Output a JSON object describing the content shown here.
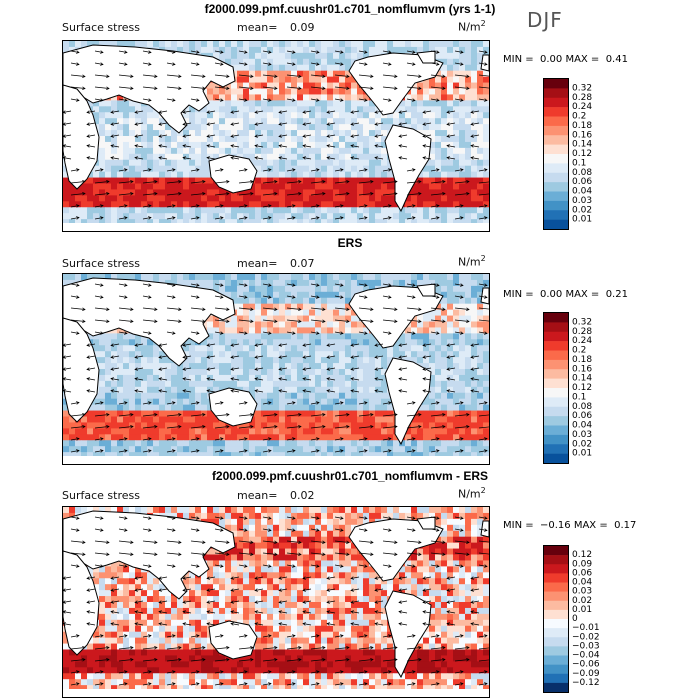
{
  "season": "DJF",
  "panels": [
    {
      "title": "f2000.099.pmf.cuushr01.c701_nomflumvm (yrs 1-1)",
      "variable": "Surface stress",
      "mean_label": "mean=",
      "mean_value": "0.09",
      "unit_base": "N/m",
      "unit_exp": "2",
      "min_label": "MIN =",
      "min_value": "0.00",
      "max_label": "MAX =",
      "max_value": "0.41",
      "colorbar_labels": [
        "0.32",
        "0.28",
        "0.24",
        "0.2",
        "0.18",
        "0.16",
        "0.14",
        "0.12",
        "0.1",
        "0.08",
        "0.06",
        "0.04",
        "0.03",
        "0.02",
        "0.01"
      ]
    },
    {
      "title": "ERS",
      "variable": "Surface stress",
      "mean_label": "mean=",
      "mean_value": "0.07",
      "unit_base": "N/m",
      "unit_exp": "2",
      "min_label": "MIN =",
      "min_value": "0.00",
      "max_label": "MAX =",
      "max_value": "0.21",
      "colorbar_labels": [
        "0.32",
        "0.28",
        "0.24",
        "0.2",
        "0.18",
        "0.16",
        "0.14",
        "0.12",
        "0.1",
        "0.08",
        "0.06",
        "0.04",
        "0.03",
        "0.02",
        "0.01"
      ]
    },
    {
      "title": "f2000.099.pmf.cuushr01.c701_nomflumvm - ERS",
      "variable": "Surface stress",
      "mean_label": "mean=",
      "mean_value": "0.02",
      "unit_base": "N/m",
      "unit_exp": "2",
      "min_label": "MIN =",
      "min_value": "−0.16",
      "max_label": "MAX =",
      "max_value": "0.17",
      "colorbar_labels": [
        "0.12",
        "0.09",
        "0.06",
        "0.04",
        "0.03",
        "0.02",
        "0.01",
        "0",
        "−0.01",
        "−0.02",
        "−0.03",
        "−0.04",
        "−0.06",
        "−0.09",
        "−0.12"
      ]
    }
  ],
  "colors": {
    "seq": [
      "#67000d",
      "#a50f15",
      "#cb181d",
      "#ef3b2c",
      "#fb6a4a",
      "#fc9272",
      "#fcbba1",
      "#fee0d2",
      "#f7f7f7",
      "#deebf7",
      "#c6dbef",
      "#9ecae1",
      "#6baed6",
      "#4292c6",
      "#2171b5",
      "#08519c"
    ],
    "div": [
      "#67000d",
      "#a50f15",
      "#cb181d",
      "#ef3b2c",
      "#fb6a4a",
      "#fc9272",
      "#fcbba1",
      "#fee0d2",
      "#f7fbff",
      "#deebf7",
      "#c6dbef",
      "#9ecae1",
      "#6baed6",
      "#4292c6",
      "#2171b5",
      "#08306b"
    ],
    "land": "#ffffff",
    "coast": "#000000",
    "arrow": "#000000"
  },
  "chart_data": [
    {
      "type": "heatmap",
      "title": "f2000.099.pmf.cuushr01.c701_nomflumvm (yrs 1-1)",
      "field": "Surface stress",
      "units": "N/m2",
      "mean": 0.09,
      "min": 0.0,
      "max": 0.41,
      "levels": [
        0.01,
        0.02,
        0.03,
        0.04,
        0.06,
        0.08,
        0.1,
        0.12,
        0.14,
        0.16,
        0.18,
        0.2,
        0.24,
        0.28,
        0.32
      ]
    },
    {
      "type": "heatmap",
      "title": "ERS",
      "field": "Surface stress",
      "units": "N/m2",
      "mean": 0.07,
      "min": 0.0,
      "max": 0.21,
      "levels": [
        0.01,
        0.02,
        0.03,
        0.04,
        0.06,
        0.08,
        0.1,
        0.12,
        0.14,
        0.16,
        0.18,
        0.2,
        0.24,
        0.28,
        0.32
      ]
    },
    {
      "type": "heatmap",
      "title": "f2000.099.pmf.cuushr01.c701_nomflumvm - ERS",
      "field": "Surface stress",
      "units": "N/m2",
      "mean": 0.02,
      "min": -0.16,
      "max": 0.17,
      "levels": [
        -0.12,
        -0.09,
        -0.06,
        -0.04,
        -0.03,
        -0.02,
        -0.01,
        0,
        0.01,
        0.02,
        0.03,
        0.04,
        0.06,
        0.09,
        0.12
      ]
    }
  ]
}
